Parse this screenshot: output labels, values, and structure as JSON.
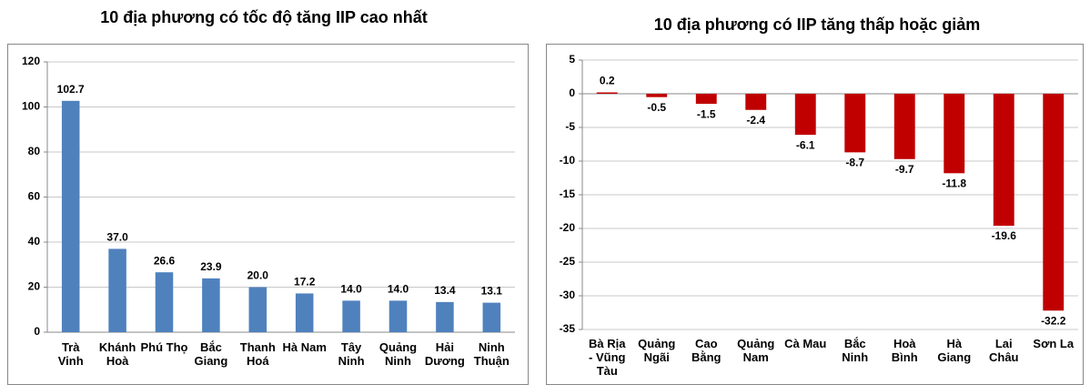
{
  "chart_data": [
    {
      "type": "bar",
      "title": "10 địa phương có tốc độ tăng IIP cao nhất",
      "categories": [
        "Trà Vinh",
        "Khánh Hoà",
        "Phú Thọ",
        "Bắc Giang",
        "Thanh Hoá",
        "Hà Nam",
        "Tây Ninh",
        "Quảng Ninh",
        "Hải Dương",
        "Ninh Thuận"
      ],
      "values": [
        102.7,
        37,
        26.6,
        23.9,
        20,
        17.2,
        14,
        14,
        13.4,
        13.1
      ],
      "value_labels": [
        "102.7",
        "37.0",
        "26.6",
        "23.9",
        "20.0",
        "17.2",
        "14.0",
        "14.0",
        "13.4",
        "13.1"
      ],
      "color": "#4f81bd",
      "ylim": [
        0,
        120
      ],
      "yticks": [
        0,
        20,
        40,
        60,
        80,
        100,
        120
      ],
      "grid": true
    },
    {
      "type": "bar",
      "title": "10 địa phương có IIP tăng thấp hoặc giảm",
      "categories": [
        "Bà Rịa - Vũng Tàu",
        "Quảng Ngãi",
        "Cao Bằng",
        "Quảng Nam",
        "Cà Mau",
        "Bắc Ninh",
        "Hoà Bình",
        "Hà Giang",
        "Lai Châu",
        "Sơn La"
      ],
      "values": [
        0.2,
        -0.5,
        -1.5,
        -2.4,
        -6.1,
        -8.7,
        -9.7,
        -11.8,
        -19.6,
        -32.2
      ],
      "color": "#c00000",
      "ylim": [
        -35,
        5
      ],
      "yticks": [
        -35,
        -30,
        -25,
        -20,
        -15,
        -10,
        -5,
        0,
        5
      ],
      "grid": true
    }
  ]
}
